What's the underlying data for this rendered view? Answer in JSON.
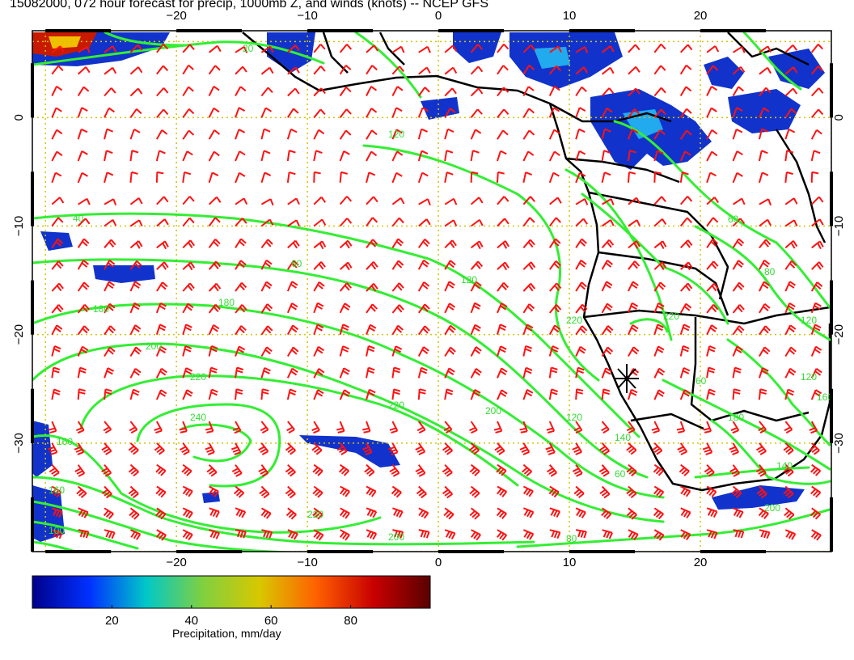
{
  "title": "15082000, 072 hour forecast for precip, 1000mb Z, and winds (knots) -- NCEP GFS",
  "map": {
    "lon_range": [
      -31,
      30
    ],
    "lat_range": [
      -40,
      8
    ],
    "lon_ticks": [
      -20,
      -10,
      0,
      10,
      20
    ],
    "lat_ticks": [
      0,
      -10,
      -20,
      -30
    ],
    "lon_tick_labels": [
      "−20",
      "−10",
      "0",
      "10",
      "20"
    ],
    "lat_tick_labels": [
      "0",
      "−10",
      "−20",
      "−30"
    ],
    "grid_color": "#d4c400",
    "contour_color": "#33ee33",
    "barb_color": "#ff1111",
    "coast_color": "#000000",
    "contour_labels": [
      "20",
      "120",
      "40",
      "60",
      "120",
      "180",
      "180",
      "200",
      "220",
      "240",
      "220",
      "220",
      "200",
      "160",
      "200",
      "220",
      "140",
      "60",
      "60",
      "80",
      "120",
      "120",
      "160",
      "180",
      "140",
      "200",
      "220",
      "60",
      "80",
      "100",
      "160",
      "120"
    ]
  },
  "colorbar": {
    "ticks": [
      20,
      40,
      60,
      80
    ],
    "tick_labels": [
      "20",
      "40",
      "60",
      "80"
    ],
    "range": [
      0,
      100
    ],
    "label": "Precipitation, mm/day",
    "colors": [
      "#00008b",
      "#0030ff",
      "#00c8c8",
      "#80d040",
      "#d8c800",
      "#ff6000",
      "#c80000",
      "#5a0000"
    ]
  }
}
